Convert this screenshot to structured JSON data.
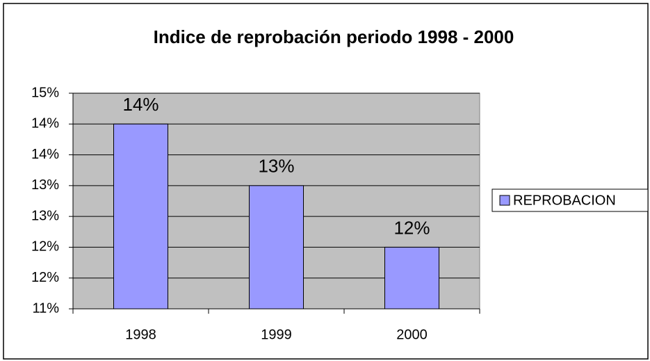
{
  "chart_data": {
    "type": "bar",
    "title": "Indice de reprobación periodo 1998 - 2000",
    "categories": [
      "1998",
      "1999",
      "2000"
    ],
    "series": [
      {
        "name": "REPROBACION",
        "color": "#9999ff",
        "values": [
          14,
          13,
          12
        ],
        "value_labels": [
          "14%",
          "13%",
          "12%"
        ]
      }
    ],
    "ylim": [
      11,
      14.5
    ],
    "yticks": [
      {
        "value": 11,
        "label": "11%"
      },
      {
        "value": 11.5,
        "label": "12%"
      },
      {
        "value": 12,
        "label": "12%"
      },
      {
        "value": 12.5,
        "label": "13%"
      },
      {
        "value": 13,
        "label": "13%"
      },
      {
        "value": 13.5,
        "label": "14%"
      },
      {
        "value": 14,
        "label": "14%"
      },
      {
        "value": 14.5,
        "label": "15%"
      }
    ],
    "grid": true,
    "legend": "right"
  }
}
